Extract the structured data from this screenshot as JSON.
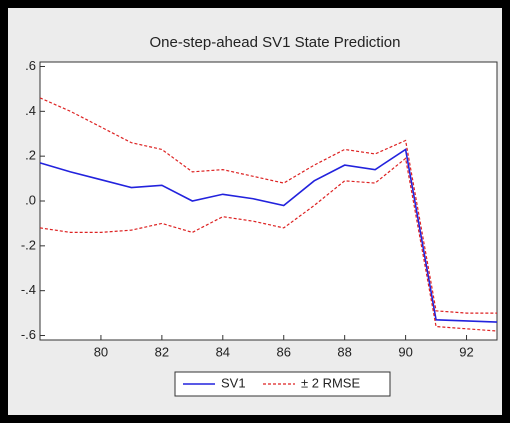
{
  "chart_data": {
    "type": "line",
    "title": "One-step-ahead SV1 State Prediction",
    "x": [
      78,
      79,
      80,
      81,
      82,
      83,
      84,
      85,
      86,
      87,
      88,
      89,
      90,
      91,
      92,
      93
    ],
    "series": [
      {
        "name": "SV1",
        "color": "#2222dd",
        "values": [
          0.17,
          0.13,
          0.095,
          0.06,
          0.07,
          0.0,
          0.03,
          0.01,
          -0.02,
          0.09,
          0.16,
          0.14,
          0.23,
          -0.53,
          -0.535,
          -0.54
        ]
      },
      {
        "name": "± 2 RMSE",
        "color": "#dd2222",
        "dashed": true,
        "upper": [
          0.46,
          0.4,
          0.33,
          0.26,
          0.23,
          0.13,
          0.14,
          0.11,
          0.08,
          0.16,
          0.23,
          0.21,
          0.27,
          -0.49,
          -0.5,
          -0.5
        ],
        "lower": [
          -0.12,
          -0.14,
          -0.14,
          -0.13,
          -0.1,
          -0.14,
          -0.07,
          -0.09,
          -0.12,
          -0.02,
          0.09,
          0.08,
          0.19,
          -0.56,
          -0.57,
          -0.58
        ]
      }
    ],
    "xlim": [
      78,
      93
    ],
    "xticks": [
      80,
      82,
      84,
      86,
      88,
      90,
      92
    ],
    "ylim": [
      -0.62,
      0.62
    ],
    "yticks": [
      {
        "value": 0.6,
        "label": ".6"
      },
      {
        "value": 0.4,
        "label": ".4"
      },
      {
        "value": 0.2,
        "label": ".2"
      },
      {
        "value": 0,
        "label": ".0"
      },
      {
        "value": -0.2,
        "label": "-.2"
      },
      {
        "value": -0.4,
        "label": "-.4"
      },
      {
        "value": -0.6,
        "label": "-.6"
      }
    ],
    "legend": "bottom"
  }
}
